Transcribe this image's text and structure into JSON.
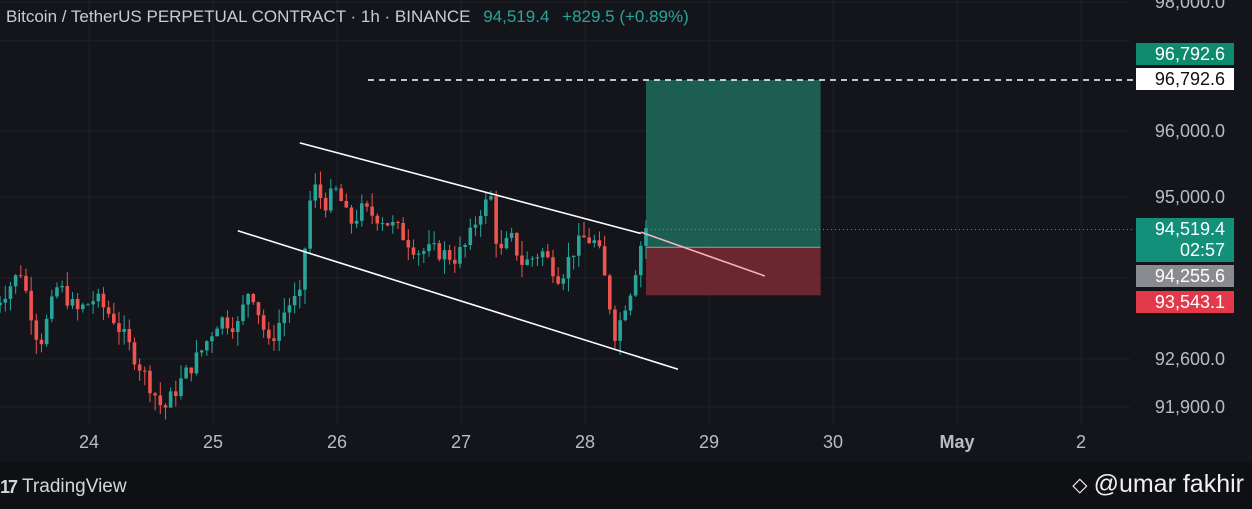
{
  "header": {
    "symbol": "Bitcoin / TetherUS PERPETUAL CONTRACT · 1h · BINANCE",
    "price": "94,519.4",
    "change": "+829.5 (+0.89%)"
  },
  "price_axis": {
    "labels": [
      "98,000.0",
      "96,000.0",
      "95,000.0",
      "92,600.0",
      "91,900.0"
    ],
    "label_values": [
      98000,
      96000,
      95000,
      92600,
      91900
    ]
  },
  "time_axis": {
    "labels": [
      "24",
      "25",
      "26",
      "27",
      "28",
      "29",
      "30",
      "May",
      "2"
    ],
    "label_days": [
      24,
      25,
      26,
      27,
      28,
      29,
      30,
      31,
      32
    ]
  },
  "tags": {
    "tp": "96,792.6",
    "tp_line": "96,792.6",
    "current": "94,519.4",
    "countdown": "02:57",
    "entry": "94,255.6",
    "sl": "93,543.1"
  },
  "colors": {
    "up": "#26a69a",
    "down": "#ef5350",
    "background": "#14151a",
    "profit_zone": "#1d6b5d",
    "loss_zone": "#7a2a34"
  },
  "branding": {
    "platform": "TradingView",
    "watermark": "@umar fakhir"
  },
  "chart_data": {
    "type": "candlestick",
    "title": "Bitcoin / TetherUS PERPETUAL CONTRACT · 1h · BINANCE",
    "x_unit": "day of month (April), May 1 = 31",
    "ylim": [
      91700,
      98000
    ],
    "grid": true,
    "price_path": [
      [
        23.2,
        93300
      ],
      [
        23.45,
        93900
      ],
      [
        23.6,
        92800
      ],
      [
        23.75,
        93700
      ],
      [
        23.9,
        93300
      ],
      [
        24.05,
        93500
      ],
      [
        24.2,
        93200
      ],
      [
        24.35,
        92700
      ],
      [
        24.5,
        92200
      ],
      [
        24.6,
        91850
      ],
      [
        24.75,
        92300
      ],
      [
        24.9,
        92700
      ],
      [
        25.05,
        93200
      ],
      [
        25.2,
        93100
      ],
      [
        25.3,
        93700
      ],
      [
        25.45,
        92800
      ],
      [
        25.6,
        93400
      ],
      [
        25.7,
        93500
      ],
      [
        25.75,
        94400
      ],
      [
        25.8,
        95200
      ],
      [
        25.9,
        94900
      ],
      [
        26.0,
        95100
      ],
      [
        26.1,
        94600
      ],
      [
        26.2,
        94800
      ],
      [
        26.35,
        94700
      ],
      [
        26.5,
        94500
      ],
      [
        26.65,
        94200
      ],
      [
        26.8,
        94200
      ],
      [
        26.95,
        94100
      ],
      [
        27.05,
        94300
      ],
      [
        27.15,
        94800
      ],
      [
        27.25,
        95000
      ],
      [
        27.3,
        94100
      ],
      [
        27.4,
        94400
      ],
      [
        27.5,
        94000
      ],
      [
        27.65,
        94200
      ],
      [
        27.8,
        93800
      ],
      [
        27.9,
        94200
      ],
      [
        28.0,
        94400
      ],
      [
        28.1,
        94300
      ],
      [
        28.18,
        93600
      ],
      [
        28.25,
        92900
      ],
      [
        28.3,
        93300
      ],
      [
        28.38,
        93700
      ],
      [
        28.45,
        94300
      ],
      [
        28.5,
        94600
      ]
    ],
    "channel": {
      "upper": [
        [
          25.7,
          95820
        ],
        [
          28.45,
          94460
        ]
      ],
      "lower": [
        [
          25.2,
          94500
        ],
        [
          28.75,
          92450
        ]
      ]
    },
    "projection": [
      [
        28.45,
        94480
      ],
      [
        29.45,
        93830
      ]
    ],
    "position": {
      "x_range": [
        28.5,
        29.9
      ],
      "take_profit": 96792.6,
      "entry": 94255.6,
      "stop_loss": 93543.1
    },
    "current_price": 94519.4
  }
}
